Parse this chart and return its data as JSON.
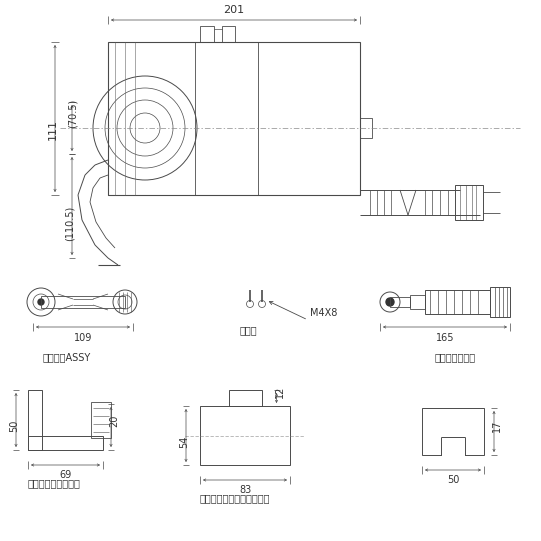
{
  "bg_color": "#ffffff",
  "lc": "#4a4a4a",
  "tc": "#333333",
  "figsize": [
    5.41,
    5.41
  ],
  "dpi": 100,
  "annotations": {
    "dim_201": "201",
    "dim_111": "111",
    "dim_70_5": "(70.5)",
    "dim_110_5": "(110.5)",
    "dim_109": "109",
    "dim_165": "165",
    "dim_50": "50",
    "dim_69": "69",
    "dim_20": "20",
    "dim_54": "54",
    "dim_83": "83",
    "dim_12": "12",
    "dim_17": "17",
    "dim_50b": "50",
    "label_m4x8": "M4X8",
    "label_koneji": "小ネジ",
    "label_teiry": "定流品弁ASSY",
    "label_strainer": "ストレーナー網",
    "label_remove_nozzle": "リムノズルキャップ",
    "label_wrench": "本体施工用ソケットレンチ"
  }
}
